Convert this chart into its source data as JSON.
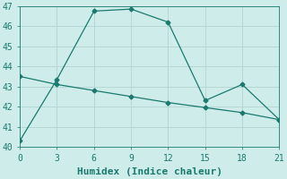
{
  "xlabel": "Humidex (Indice chaleur)",
  "ylabel": "",
  "background_color": "#ceecea",
  "grid_color": "#b5d8d4",
  "line_color": "#1a7a6e",
  "xlim": [
    0,
    21
  ],
  "ylim": [
    40,
    47
  ],
  "xticks": [
    0,
    3,
    6,
    9,
    12,
    15,
    18,
    21
  ],
  "yticks": [
    40,
    41,
    42,
    43,
    44,
    45,
    46,
    47
  ],
  "line1_x": [
    0,
    3,
    6,
    9,
    12,
    15,
    18,
    21
  ],
  "line1_y": [
    40.3,
    43.35,
    46.75,
    46.85,
    46.2,
    42.3,
    43.1,
    41.35
  ],
  "line2_x": [
    0,
    3,
    6,
    9,
    12,
    15,
    18,
    21
  ],
  "line2_y": [
    43.5,
    43.1,
    42.8,
    42.5,
    42.2,
    41.95,
    41.7,
    41.35
  ],
  "marker": "D",
  "markersize": 2.5,
  "linewidth": 0.9,
  "font_family": "monospace",
  "xlabel_fontsize": 8,
  "tick_fontsize": 7
}
